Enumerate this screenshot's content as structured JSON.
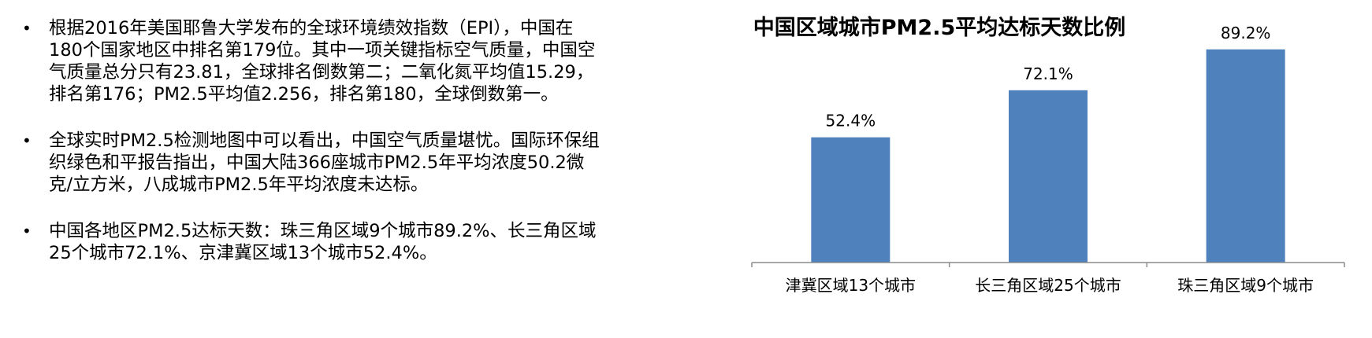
{
  "bullets": [
    {
      "text": "根据2016年美国耶鲁大学发布的全球环境绩效指数（EPI），中国在180个国家地区中排名第179位。其中一项关键指标空气质量，中国空气质量总分只有23.81，全球排名倒数第二；二氧化氮平均值15.29，排名第176；PM2.5平均值2.256，排名第180，全球倒数第一。"
    },
    {
      "text": "全球实时PM2.5检测地图中可以看出，中国空气质量堪忧。国际环保组织绿色和平报告指出，中国大陆366座城市PM2.5年平均浓度50.2微克/立方米，八成城市PM2.5年平均浓度未达标。"
    },
    {
      "text": "中国各地区PM2.5达标天数：珠三角区域9个城市89.2%、长三角区域25个城市72.1%、京津冀区域13个城市52.4%。"
    }
  ],
  "bullet_symbol": "•",
  "chart_data": {
    "type": "bar",
    "title": "中国区域城市PM2.5平均达标天数比例",
    "categories": [
      "津冀区域13个城市",
      "长三角区域25个城市",
      "珠三角区域9个城市"
    ],
    "values": [
      52.4,
      72.1,
      89.2
    ],
    "data_labels": [
      "52.4%",
      "72.1%",
      "89.2%"
    ],
    "ylim": [
      0,
      100
    ],
    "grid": false,
    "bar_color": "#4f81bd"
  }
}
